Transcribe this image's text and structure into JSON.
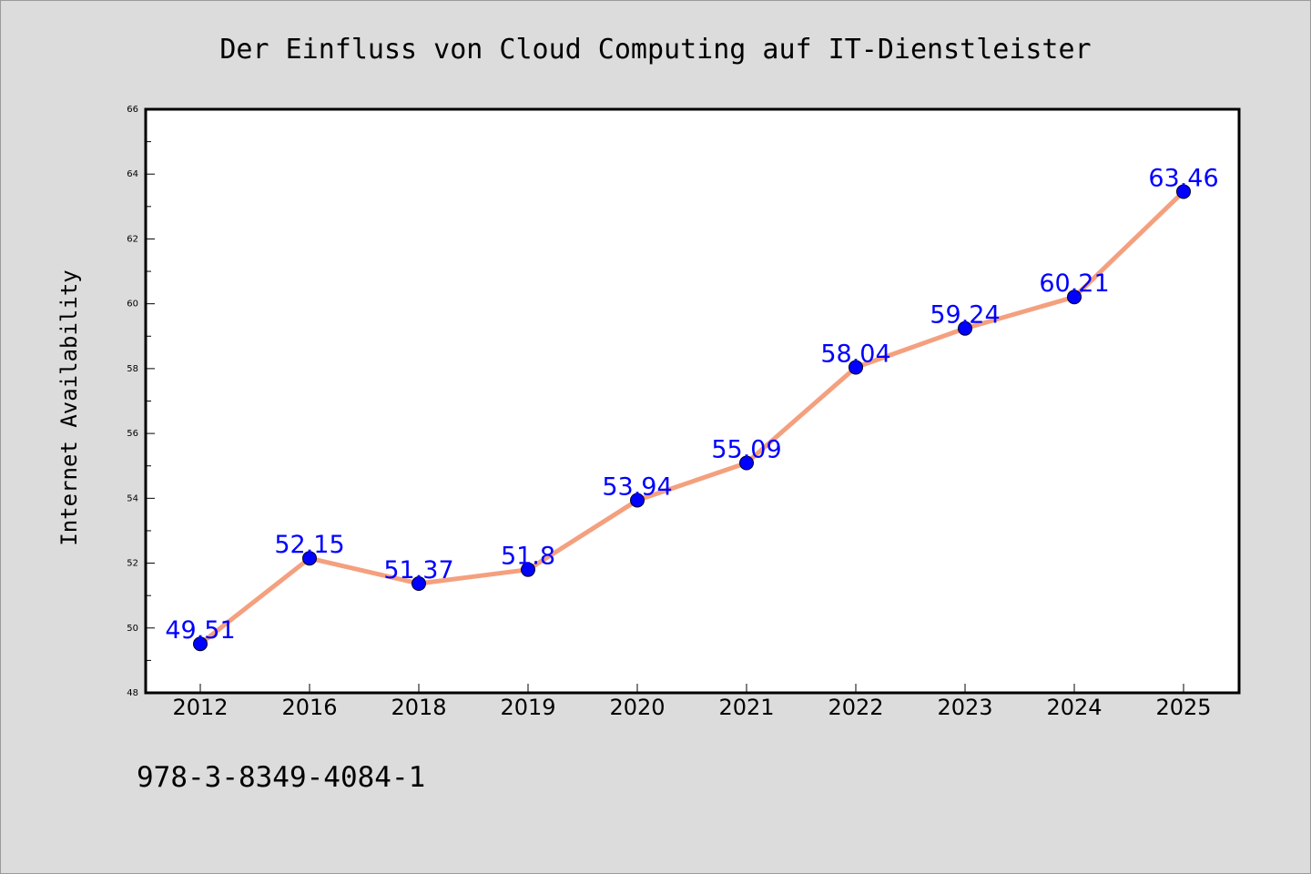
{
  "chart_data": {
    "type": "line",
    "title": "Der Einfluss von Cloud Computing auf IT-Dienstleister",
    "xlabel": "",
    "ylabel": "Internet Availability",
    "categories": [
      "2012",
      "2016",
      "2018",
      "2019",
      "2020",
      "2021",
      "2022",
      "2023",
      "2024",
      "2025"
    ],
    "series": [
      {
        "values": [
          49.51,
          52.15,
          51.37,
          51.8,
          53.94,
          55.09,
          58.04,
          59.24,
          60.21,
          63.46
        ],
        "labels": [
          "49.51",
          "52.15",
          "51.37",
          "51.8",
          "53.94",
          "55.09",
          "58.04",
          "59.24",
          "60.21",
          "63.46"
        ]
      }
    ],
    "ylim": [
      48,
      66
    ],
    "yticks": [
      "48",
      "50",
      "52",
      "54",
      "56",
      "58",
      "60",
      "62",
      "64",
      "66"
    ],
    "grid": false,
    "legend": "none",
    "colors": {
      "line": "#f4a07e",
      "marker": "#0000ff",
      "data_label": "#0000ff",
      "background": "#dcdcdc",
      "plot_background": "#ffffff"
    }
  },
  "footer": {
    "isbn": "978-3-8349-4084-1"
  }
}
